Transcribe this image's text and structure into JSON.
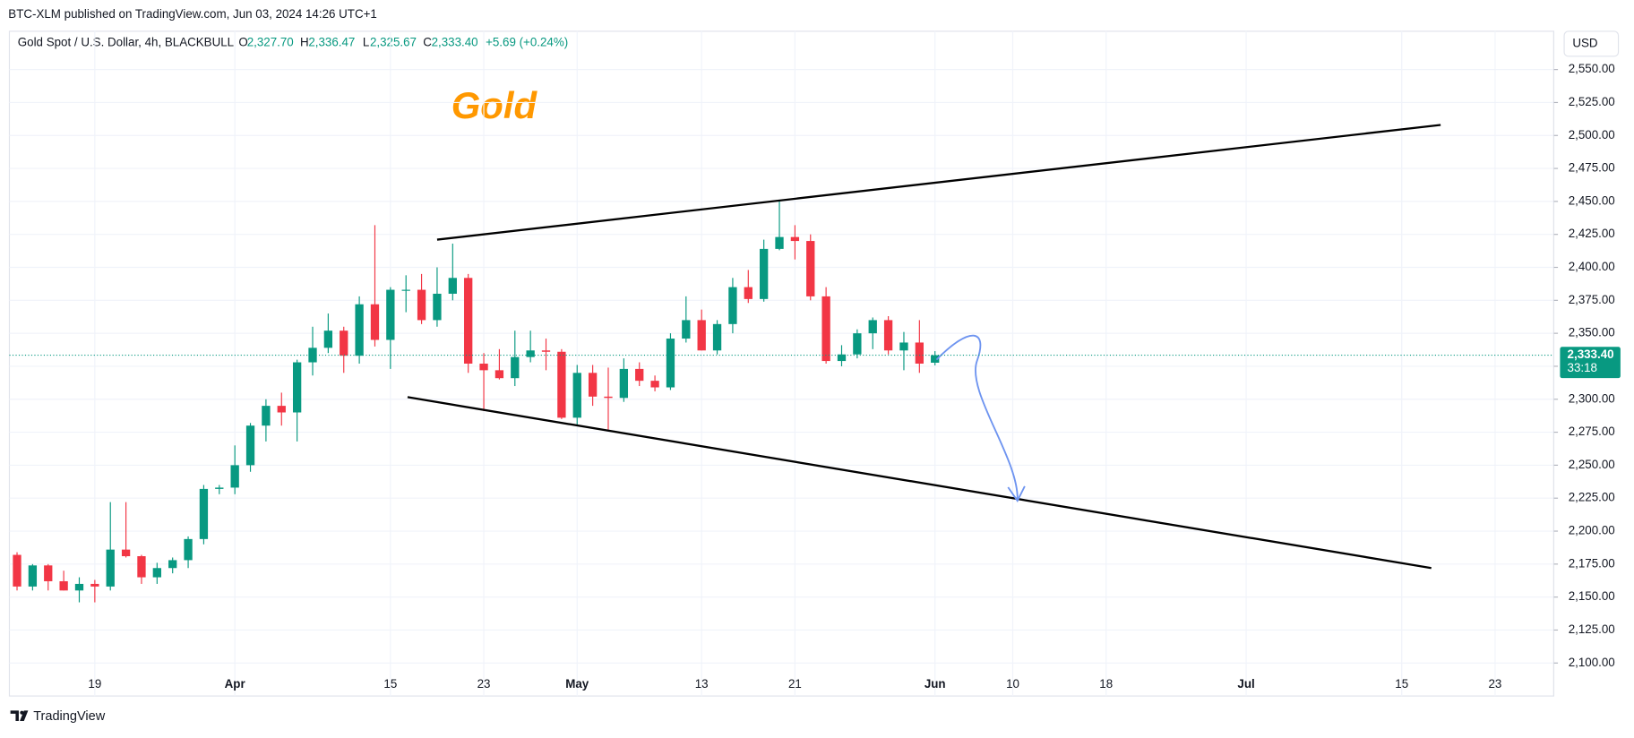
{
  "page": {
    "published": "BTC-XLM published on TradingView.com, Jun 03, 2024 14:26 UTC+1",
    "currency": "USD",
    "brand": "TradingView"
  },
  "header": {
    "symbol": "Gold Spot / U.S. Dollar, 4h, BLACKBULL",
    "o_key": "O",
    "o": "2,327.70",
    "h_key": "H",
    "h": "2,336.47",
    "l_key": "L",
    "l": "2,325.67",
    "c_key": "C",
    "c": "2,333.40",
    "change": "+5.69 (+0.24%)"
  },
  "chart_data": {
    "type": "candlestick",
    "title": "Gold",
    "up_color": "#089981",
    "down_color": "#f23645",
    "grid": true,
    "ylim": [
      2075,
      2579
    ],
    "yticks": [
      {
        "value": 2100,
        "label": "2,100.00"
      },
      {
        "value": 2125,
        "label": "2,125.00"
      },
      {
        "value": 2150,
        "label": "2,150.00"
      },
      {
        "value": 2175,
        "label": "2,175.00"
      },
      {
        "value": 2200,
        "label": "2,200.00"
      },
      {
        "value": 2225,
        "label": "2,225.00"
      },
      {
        "value": 2250,
        "label": "2,250.00"
      },
      {
        "value": 2275,
        "label": "2,275.00"
      },
      {
        "value": 2300,
        "label": "2,300.00"
      },
      {
        "value": 2325,
        "label": "2,325.00"
      },
      {
        "value": 2350,
        "label": "2,350.00"
      },
      {
        "value": 2375,
        "label": "2,375.00"
      },
      {
        "value": 2400,
        "label": "2,400.00"
      },
      {
        "value": 2425,
        "label": "2,425.00"
      },
      {
        "value": 2450,
        "label": "2,450.00"
      },
      {
        "value": 2475,
        "label": "2,475.00"
      },
      {
        "value": 2500,
        "label": "2,500.00"
      },
      {
        "value": 2525,
        "label": "2,525.00"
      },
      {
        "value": 2550,
        "label": "2,550.00"
      }
    ],
    "categories": [
      null,
      null,
      null,
      null,
      null,
      "19",
      null,
      null,
      null,
      null,
      null,
      null,
      null,
      null,
      "Apr",
      null,
      null,
      null,
      null,
      null,
      null,
      null,
      null,
      null,
      "15",
      null,
      null,
      null,
      null,
      null,
      "23",
      null,
      null,
      null,
      null,
      null,
      "May",
      null,
      null,
      null,
      null,
      null,
      null,
      null,
      "13",
      null,
      null,
      null,
      null,
      null,
      "21",
      null,
      null,
      null,
      null,
      null,
      null,
      null,
      null,
      "Jun",
      null,
      null,
      null,
      null,
      "10",
      null,
      null,
      null,
      null,
      null,
      "18",
      null,
      null,
      null,
      null,
      null,
      null,
      null,
      null,
      "Jul",
      null,
      null,
      null,
      null,
      null,
      null,
      null,
      null,
      null,
      "15",
      null,
      null,
      null,
      null,
      null,
      "23",
      null,
      null,
      null
    ],
    "open": [
      2182,
      2158,
      2174,
      2162,
      2155,
      2160,
      2158,
      2186,
      2181,
      2165,
      2172,
      2178,
      2194,
      2232,
      2233,
      2250,
      2280,
      2295,
      2290,
      2328,
      2339,
      2352,
      2333,
      2372,
      2345,
      2383,
      2383,
      2360,
      2380,
      2392,
      2327,
      2322,
      2316,
      2332,
      2337,
      2336,
      2286,
      2320,
      2302,
      2301,
      2323,
      2314,
      2309,
      2346,
      2360,
      2337,
      2357,
      2385,
      2376,
      2414,
      2423,
      2420,
      2378,
      2329,
      2334,
      2350,
      2360,
      2337,
      2343,
      2327.7,
      null,
      null,
      null,
      null,
      null,
      null,
      null,
      null,
      null,
      null,
      null,
      null,
      null,
      null,
      null,
      null,
      null,
      null,
      null,
      null,
      null,
      null,
      null,
      null,
      null,
      null,
      null,
      null,
      null,
      null,
      null,
      null,
      null,
      null,
      null,
      null,
      null,
      null,
      null
    ],
    "high": [
      2184,
      2175,
      2175,
      2170,
      2165,
      2163,
      2222,
      2222,
      2182,
      2176,
      2180,
      2196,
      2235,
      2235,
      2265,
      2282,
      2300,
      2305,
      2330,
      2355,
      2365,
      2355,
      2378,
      2432,
      2385,
      2394,
      2395,
      2400,
      2418,
      2395,
      2335,
      2338,
      2352,
      2352,
      2346,
      2338,
      2326,
      2326,
      2324,
      2331,
      2328,
      2318,
      2350,
      2378,
      2368,
      2360,
      2392,
      2398,
      2421,
      2450,
      2432,
      2425,
      2385,
      2341,
      2353,
      2362,
      2363,
      2351,
      2360,
      2336.47,
      null,
      null,
      null,
      null,
      null,
      null,
      null,
      null,
      null,
      null,
      null,
      null,
      null,
      null,
      null,
      null,
      null,
      null,
      null,
      null,
      null,
      null,
      null,
      null,
      null,
      null,
      null,
      null,
      null,
      null,
      null,
      null,
      null,
      null,
      null,
      null,
      null,
      null,
      null
    ],
    "low": [
      2155,
      2155,
      2155,
      2155,
      2146,
      2146,
      2155,
      2180,
      2160,
      2160,
      2168,
      2172,
      2190,
      2228,
      2228,
      2245,
      2268,
      2280,
      2268,
      2318,
      2335,
      2320,
      2327,
      2340,
      2323,
      2366,
      2357,
      2355,
      2375,
      2320,
      2291,
      2315,
      2310,
      2328,
      2322,
      2285,
      2280,
      2295,
      2277,
      2298,
      2310,
      2306,
      2307,
      2343,
      2337,
      2334,
      2350,
      2373,
      2374,
      2413,
      2406,
      2375,
      2327,
      2325,
      2331,
      2338,
      2334,
      2322,
      2320,
      2325.67,
      null,
      null,
      null,
      null,
      null,
      null,
      null,
      null,
      null,
      null,
      null,
      null,
      null,
      null,
      null,
      null,
      null,
      null,
      null,
      null,
      null,
      null,
      null,
      null,
      null,
      null,
      null,
      null,
      null,
      null,
      null,
      null,
      null,
      null,
      null,
      null,
      null,
      null,
      null
    ],
    "close": [
      2158,
      2174,
      2162,
      2155,
      2160,
      2158,
      2186,
      2181,
      2165,
      2172,
      2178,
      2194,
      2232,
      2233,
      2250,
      2280,
      2295,
      2290,
      2328,
      2339,
      2352,
      2333,
      2372,
      2345,
      2383,
      2383,
      2360,
      2380,
      2392,
      2327,
      2322,
      2316,
      2332,
      2337,
      2336,
      2286,
      2320,
      2302,
      2301,
      2323,
      2314,
      2309,
      2346,
      2360,
      2337,
      2357,
      2385,
      2376,
      2414,
      2423,
      2420,
      2378,
      2329,
      2334,
      2350,
      2360,
      2337,
      2343,
      2327,
      2333.4,
      null,
      null,
      null,
      null,
      null,
      null,
      null,
      null,
      null,
      null,
      null,
      null,
      null,
      null,
      null,
      null,
      null,
      null,
      null,
      null,
      null,
      null,
      null,
      null,
      null,
      null,
      null,
      null,
      null,
      null,
      null,
      null,
      null,
      null,
      null,
      null,
      null,
      null,
      null
    ],
    "last_price": {
      "value": 2333.4,
      "label": "2,333.40",
      "countdown": "33:18",
      "color": "#089981"
    },
    "trendlines": [
      {
        "color": "#000000",
        "points": [
          [
            27,
            2421
          ],
          [
            91.5,
            2508
          ]
        ]
      },
      {
        "color": "#000000",
        "points": [
          [
            25.1,
            2301.6
          ],
          [
            90.9,
            2172
          ]
        ]
      }
    ],
    "arrow": {
      "color": "#6e94f0",
      "points": [
        [
          59.1,
          2330
        ],
        [
          60.9,
          2345
        ],
        [
          64.3,
          2223
        ]
      ]
    }
  }
}
